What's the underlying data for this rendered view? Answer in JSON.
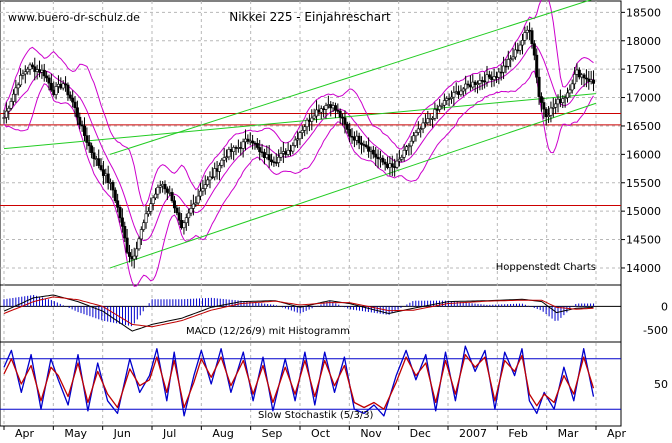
{
  "watermark": "www.buero-dr-schulz.de",
  "chart_data": [
    {
      "type": "candlestick",
      "title": "Nikkei 225 - Einjahreschart",
      "source_label": "Hoppenstedt Charts",
      "ylim": [
        13700,
        18700
      ],
      "y_ticks": [
        18500,
        18000,
        17500,
        17000,
        16500,
        16000,
        15500,
        15000,
        14500,
        14000
      ],
      "x_months": [
        "Apr",
        "May",
        "Jun",
        "Jul",
        "Aug",
        "Sep",
        "Oct",
        "Nov",
        "Dec",
        "2007",
        "Feb",
        "Mar",
        "Apr"
      ],
      "horizontal_lines": [
        16720,
        16520,
        15100
      ],
      "trend_channel": [
        {
          "x0": 0.0,
          "y0": 16100,
          "x1": 12.0,
          "y1": 17070
        },
        {
          "x0": 2.15,
          "y0": 16000,
          "x1": 12.0,
          "y1": 18750
        },
        {
          "x0": 2.15,
          "y0": 14000,
          "x1": 12.0,
          "y1": 16900
        }
      ],
      "price_path": [
        [
          0.0,
          16650
        ],
        [
          0.3,
          17300
        ],
        [
          0.5,
          17550
        ],
        [
          0.8,
          17450
        ],
        [
          1.0,
          17100
        ],
        [
          1.2,
          17250
        ],
        [
          1.4,
          16900
        ],
        [
          1.6,
          16400
        ],
        [
          1.8,
          16000
        ],
        [
          2.0,
          15700
        ],
        [
          2.2,
          15400
        ],
        [
          2.35,
          14900
        ],
        [
          2.5,
          14300
        ],
        [
          2.6,
          14150
        ],
        [
          2.8,
          14700
        ],
        [
          3.0,
          15200
        ],
        [
          3.2,
          15500
        ],
        [
          3.4,
          15250
        ],
        [
          3.6,
          14650
        ],
        [
          3.8,
          15050
        ],
        [
          4.0,
          15400
        ],
        [
          4.2,
          15600
        ],
        [
          4.5,
          16000
        ],
        [
          4.8,
          16150
        ],
        [
          5.0,
          16300
        ],
        [
          5.2,
          16000
        ],
        [
          5.5,
          15900
        ],
        [
          5.8,
          16100
        ],
        [
          6.0,
          16400
        ],
        [
          6.3,
          16750
        ],
        [
          6.6,
          16900
        ],
        [
          6.8,
          16700
        ],
        [
          7.0,
          16350
        ],
        [
          7.3,
          16200
        ],
        [
          7.6,
          15900
        ],
        [
          7.9,
          15750
        ],
        [
          8.1,
          16000
        ],
        [
          8.3,
          16300
        ],
        [
          8.6,
          16600
        ],
        [
          8.9,
          16900
        ],
        [
          9.2,
          17100
        ],
        [
          9.5,
          17250
        ],
        [
          9.8,
          17350
        ],
        [
          10.0,
          17400
        ],
        [
          10.3,
          17700
        ],
        [
          10.5,
          18000
        ],
        [
          10.65,
          18250
        ],
        [
          10.75,
          17750
        ],
        [
          10.85,
          17000
        ],
        [
          11.0,
          16700
        ],
        [
          11.2,
          16900
        ],
        [
          11.4,
          17050
        ],
        [
          11.6,
          17450
        ],
        [
          11.8,
          17350
        ],
        [
          11.95,
          17250
        ]
      ]
    },
    {
      "type": "line",
      "title": "MACD (12/26/9) mit Histogramm",
      "y_ticks": [
        0,
        -500
      ],
      "ylim": [
        -750,
        450
      ],
      "series": [
        {
          "color": "#000000",
          "values": [
            [
              0,
              -100
            ],
            [
              0.6,
              180
            ],
            [
              1.0,
              240
            ],
            [
              1.5,
              100
            ],
            [
              2.0,
              -100
            ],
            [
              2.6,
              -520
            ],
            [
              3.0,
              -380
            ],
            [
              3.6,
              -250
            ],
            [
              4.2,
              -20
            ],
            [
              4.8,
              100
            ],
            [
              5.5,
              120
            ],
            [
              6.0,
              -20
            ],
            [
              6.6,
              120
            ],
            [
              7.0,
              60
            ],
            [
              7.8,
              -150
            ],
            [
              8.3,
              -40
            ],
            [
              9.0,
              100
            ],
            [
              9.8,
              120
            ],
            [
              10.5,
              150
            ],
            [
              10.9,
              100
            ],
            [
              11.2,
              -130
            ],
            [
              11.6,
              -40
            ],
            [
              11.95,
              -20
            ]
          ]
        },
        {
          "color": "#c00000",
          "values": [
            [
              0,
              -150
            ],
            [
              0.6,
              100
            ],
            [
              1.0,
              200
            ],
            [
              1.5,
              140
            ],
            [
              2.0,
              0
            ],
            [
              2.6,
              -380
            ],
            [
              3.0,
              -430
            ],
            [
              3.6,
              -300
            ],
            [
              4.2,
              -80
            ],
            [
              4.8,
              60
            ],
            [
              5.5,
              110
            ],
            [
              6.0,
              30
            ],
            [
              6.6,
              80
            ],
            [
              7.0,
              80
            ],
            [
              7.8,
              -90
            ],
            [
              8.3,
              -80
            ],
            [
              9.0,
              60
            ],
            [
              9.8,
              110
            ],
            [
              10.5,
              130
            ],
            [
              10.9,
              130
            ],
            [
              11.2,
              -20
            ],
            [
              11.6,
              -60
            ],
            [
              11.95,
              -40
            ]
          ]
        }
      ]
    },
    {
      "type": "line",
      "title": "Slow Stochastik (5/3/3)",
      "y_ticks": [
        50
      ],
      "levels": [
        80,
        20
      ],
      "ylim": [
        0,
        100
      ],
      "series": [
        {
          "color": "#0000cc",
          "values": [
            [
              0,
              70
            ],
            [
              0.15,
              90
            ],
            [
              0.35,
              40
            ],
            [
              0.55,
              85
            ],
            [
              0.75,
              20
            ],
            [
              0.95,
              80
            ],
            [
              1.1,
              55
            ],
            [
              1.3,
              25
            ],
            [
              1.5,
              85
            ],
            [
              1.7,
              18
            ],
            [
              1.9,
              75
            ],
            [
              2.1,
              30
            ],
            [
              2.3,
              15
            ],
            [
              2.55,
              80
            ],
            [
              2.75,
              40
            ],
            [
              2.95,
              60
            ],
            [
              3.1,
              92
            ],
            [
              3.3,
              30
            ],
            [
              3.45,
              88
            ],
            [
              3.65,
              12
            ],
            [
              3.85,
              60
            ],
            [
              4.0,
              90
            ],
            [
              4.2,
              50
            ],
            [
              4.4,
              92
            ],
            [
              4.6,
              40
            ],
            [
              4.85,
              88
            ],
            [
              5.05,
              30
            ],
            [
              5.25,
              82
            ],
            [
              5.45,
              18
            ],
            [
              5.7,
              80
            ],
            [
              5.9,
              30
            ],
            [
              6.1,
              88
            ],
            [
              6.3,
              25
            ],
            [
              6.5,
              88
            ],
            [
              6.7,
              40
            ],
            [
              6.9,
              82
            ],
            [
              7.1,
              20
            ],
            [
              7.3,
              15
            ],
            [
              7.5,
              25
            ],
            [
              7.7,
              12
            ],
            [
              7.95,
              60
            ],
            [
              8.15,
              90
            ],
            [
              8.35,
              55
            ],
            [
              8.55,
              85
            ],
            [
              8.75,
              18
            ],
            [
              8.95,
              88
            ],
            [
              9.15,
              30
            ],
            [
              9.35,
              95
            ],
            [
              9.55,
              65
            ],
            [
              9.75,
              90
            ],
            [
              9.95,
              20
            ],
            [
              10.15,
              88
            ],
            [
              10.35,
              60
            ],
            [
              10.5,
              92
            ],
            [
              10.65,
              30
            ],
            [
              10.8,
              15
            ],
            [
              10.95,
              40
            ],
            [
              11.15,
              20
            ],
            [
              11.35,
              70
            ],
            [
              11.55,
              30
            ],
            [
              11.75,
              92
            ],
            [
              11.95,
              35
            ]
          ]
        },
        {
          "color": "#c00000",
          "values": [
            [
              0,
              62
            ],
            [
              0.15,
              80
            ],
            [
              0.35,
              50
            ],
            [
              0.55,
              72
            ],
            [
              0.75,
              30
            ],
            [
              0.95,
              70
            ],
            [
              1.1,
              60
            ],
            [
              1.3,
              35
            ],
            [
              1.5,
              75
            ],
            [
              1.7,
              28
            ],
            [
              1.9,
              65
            ],
            [
              2.1,
              38
            ],
            [
              2.3,
              22
            ],
            [
              2.55,
              68
            ],
            [
              2.75,
              48
            ],
            [
              2.95,
              55
            ],
            [
              3.1,
              82
            ],
            [
              3.3,
              40
            ],
            [
              3.45,
              78
            ],
            [
              3.65,
              22
            ],
            [
              3.85,
              52
            ],
            [
              4.0,
              80
            ],
            [
              4.2,
              58
            ],
            [
              4.4,
              82
            ],
            [
              4.6,
              48
            ],
            [
              4.85,
              78
            ],
            [
              5.05,
              38
            ],
            [
              5.25,
              72
            ],
            [
              5.45,
              28
            ],
            [
              5.7,
              70
            ],
            [
              5.9,
              38
            ],
            [
              6.1,
              78
            ],
            [
              6.3,
              35
            ],
            [
              6.5,
              78
            ],
            [
              6.7,
              48
            ],
            [
              6.9,
              72
            ],
            [
              7.1,
              28
            ],
            [
              7.3,
              22
            ],
            [
              7.5,
              28
            ],
            [
              7.7,
              20
            ],
            [
              7.95,
              52
            ],
            [
              8.15,
              82
            ],
            [
              8.35,
              60
            ],
            [
              8.55,
              75
            ],
            [
              8.75,
              28
            ],
            [
              8.95,
              78
            ],
            [
              9.15,
              38
            ],
            [
              9.35,
              85
            ],
            [
              9.55,
              70
            ],
            [
              9.75,
              82
            ],
            [
              9.95,
              30
            ],
            [
              10.15,
              78
            ],
            [
              10.35,
              65
            ],
            [
              10.5,
              84
            ],
            [
              10.65,
              38
            ],
            [
              10.8,
              24
            ],
            [
              10.95,
              38
            ],
            [
              11.15,
              28
            ],
            [
              11.35,
              60
            ],
            [
              11.55,
              38
            ],
            [
              11.75,
              82
            ],
            [
              11.95,
              45
            ]
          ]
        }
      ]
    }
  ]
}
